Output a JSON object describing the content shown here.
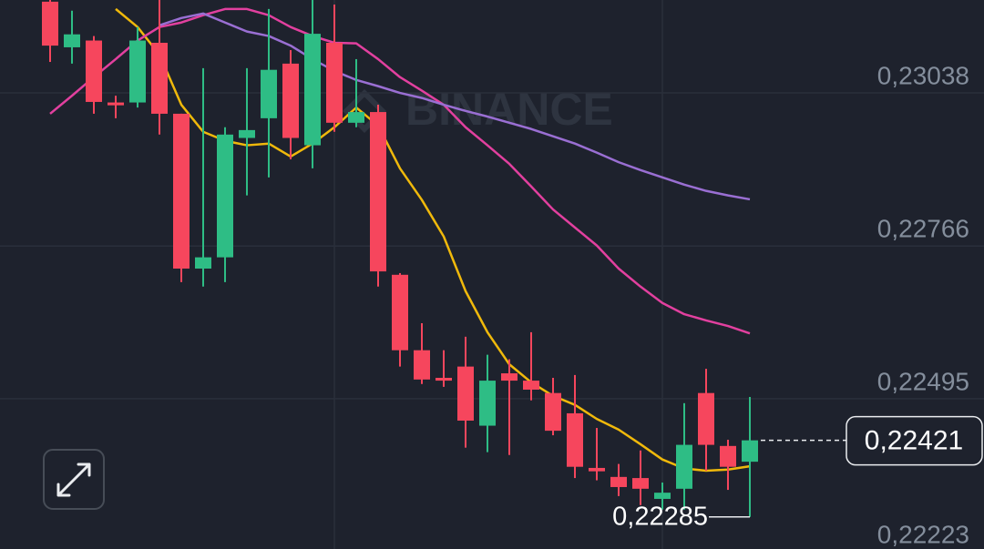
{
  "chart_data": {
    "type": "candlestick",
    "watermark": "BINANCE",
    "up_color": "#2ebd85",
    "down_color": "#f6465d",
    "grid": true,
    "ylim": [
      0.22228,
      0.23203
    ],
    "yticks": [
      {
        "value": 0.23038,
        "label": "0,23038"
      },
      {
        "value": 0.22766,
        "label": "0,22766"
      },
      {
        "value": 0.22495,
        "label": "0,22495"
      },
      {
        "value": 0.22223,
        "label": "0,22223"
      }
    ],
    "open": [
      0.232,
      0.23119,
      0.23131,
      0.23021,
      0.23021,
      0.23127,
      0.23001,
      0.22726,
      0.22746,
      0.22958,
      0.22993,
      0.2309,
      0.22945,
      0.23127,
      0.22985,
      0.23004,
      0.22715,
      0.22581,
      0.22532,
      0.22552,
      0.22447,
      0.2254,
      0.22527,
      0.22505,
      0.22469,
      0.22372,
      0.22356,
      0.22354,
      0.22317,
      0.22335,
      0.22505,
      0.22411,
      0.22383
    ],
    "high": [
      0.23203,
      0.23184,
      0.23139,
      0.23033,
      0.23155,
      0.23203,
      0.23001,
      0.23082,
      0.22977,
      0.23082,
      0.23187,
      0.23114,
      0.23203,
      0.23195,
      0.23098,
      0.23017,
      0.22718,
      0.22629,
      0.22581,
      0.22605,
      0.22573,
      0.22565,
      0.22613,
      0.22532,
      0.22537,
      0.22443,
      0.22379,
      0.22403,
      0.22346,
      0.22487,
      0.22548,
      0.22422,
      0.22498
    ],
    "low": [
      0.23093,
      0.2309,
      0.23001,
      0.22993,
      0.23012,
      0.22964,
      0.22702,
      0.22694,
      0.22702,
      0.22856,
      0.22888,
      0.2292,
      0.22904,
      0.22969,
      0.22977,
      0.22694,
      0.22552,
      0.22521,
      0.22516,
      0.22408,
      0.224,
      0.22395,
      0.22492,
      0.2243,
      0.22354,
      0.2235,
      0.22322,
      0.22306,
      0.22298,
      0.22298,
      0.22367,
      0.22333,
      0.22285
    ],
    "close": [
      0.23122,
      0.23142,
      0.23022,
      0.23016,
      0.23131,
      0.23001,
      0.22726,
      0.22746,
      0.22964,
      0.22972,
      0.23079,
      0.22958,
      0.23143,
      0.22985,
      0.23004,
      0.22721,
      0.22581,
      0.22529,
      0.22527,
      0.22456,
      0.22527,
      0.22527,
      0.22511,
      0.22438,
      0.22374,
      0.22366,
      0.22338,
      0.22335,
      0.22328,
      0.22413,
      0.22413,
      0.22374,
      0.22421
    ],
    "lines": [
      {
        "color": "#f0b90b",
        "values": [
          null,
          null,
          null,
          0.23187,
          0.23155,
          0.23106,
          0.23017,
          0.22969,
          0.22953,
          0.22945,
          0.22948,
          0.22925,
          0.22948,
          0.22977,
          0.23012,
          0.2298,
          0.22904,
          0.22848,
          0.22783,
          0.22686,
          0.22613,
          0.22556,
          0.22524,
          0.225,
          0.22484,
          0.22459,
          0.2244,
          0.22414,
          0.22387,
          0.22371,
          0.22367,
          0.22369,
          0.22375
        ]
      },
      {
        "color": "#e2409f",
        "values": [
          0.23001,
          0.23033,
          0.23066,
          0.23098,
          0.23131,
          0.23155,
          0.23163,
          0.23176,
          0.23187,
          0.23187,
          0.23176,
          0.23155,
          0.23139,
          0.23127,
          0.23126,
          0.23098,
          0.23066,
          0.23042,
          0.23017,
          0.22977,
          0.22945,
          0.22912,
          0.22872,
          0.22831,
          0.22799,
          0.22767,
          0.22726,
          0.22694,
          0.22665,
          0.22645,
          0.22634,
          0.22624,
          0.22611
        ]
      },
      {
        "color": "#9a6fd3",
        "values": [
          null,
          null,
          null,
          null,
          null,
          0.23158,
          0.23171,
          0.23179,
          0.23163,
          0.23147,
          0.23139,
          0.23122,
          0.23098,
          0.23077,
          0.23061,
          0.2305,
          0.23038,
          0.23029,
          0.23017,
          0.23006,
          0.22996,
          0.22985,
          0.22974,
          0.22961,
          0.22948,
          0.22932,
          0.22915,
          0.22901,
          0.22888,
          0.22875,
          0.22864,
          0.22856,
          0.22849
        ]
      }
    ],
    "last_price": {
      "value": 0.22421,
      "label": "0,22421"
    },
    "low_label": {
      "value": 0.22285,
      "label": "0,22285"
    }
  }
}
